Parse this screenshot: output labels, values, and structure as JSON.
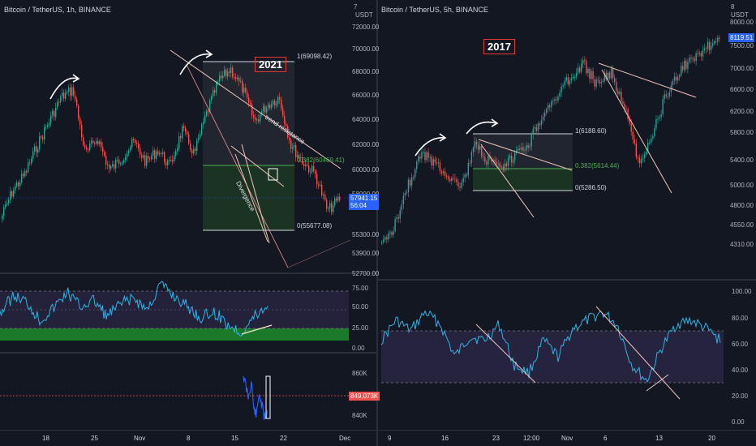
{
  "left_chart": {
    "title": "Bitcoin / TetherUS, 1h, BINANCE",
    "currency": "USDT",
    "year_label": "2021",
    "price_axis": [
      "72000.00",
      "70000.00",
      "68000.00",
      "66000.00",
      "64000.00",
      "62000.00",
      "60000.00",
      "58000.00",
      "55300.00",
      "53900.00",
      "52700.00"
    ],
    "price_tag_value": "57941.15",
    "price_tag_time": "56:04",
    "fib_labels": [
      "1(69098.42)",
      "0.382(60469.41)",
      "0(55677.08)"
    ],
    "annotations": [
      "trend resistance",
      "Divergence"
    ],
    "rsi_axis": [
      "75.00",
      "50.00",
      "25.00",
      "0.00"
    ],
    "volume_axis": [
      "860K",
      "840K"
    ],
    "volume_tag": "849.073K",
    "time_axis": [
      "18",
      "25",
      "Nov",
      "8",
      "15",
      "22",
      "Dec"
    ],
    "top_right_label": "7"
  },
  "right_chart": {
    "title": "Bitcoin / TetherUS, 5h, BINANCE",
    "currency": "USDT",
    "year_label": "2017",
    "price_axis": [
      "8000.00",
      "7500.00",
      "7000.00",
      "6600.00",
      "6200.00",
      "5800.00",
      "5400.00",
      "5000.00",
      "4800.00",
      "4550.00",
      "4310.00"
    ],
    "price_tag_value": "8119.51",
    "fib_labels": [
      "1(6188.60)",
      "0.382(5614.44)",
      "0(5286.50)"
    ],
    "rsi_axis": [
      "100.00",
      "80.00",
      "60.00",
      "40.00",
      "20.00",
      "0.00"
    ],
    "time_axis": [
      "9",
      "16",
      "23",
      "12:00",
      "Nov",
      "6",
      "13",
      "20"
    ],
    "top_right_label": "8"
  },
  "colors": {
    "bg": "#131722",
    "up": "#26a69a",
    "down": "#ef5350",
    "rsi": "#2ab4e8",
    "rsi_band": "#3a2f5a",
    "green_zone": "#1b7a2a",
    "fib_green": "#2e7d32",
    "blue_tag": "#2962ff"
  }
}
